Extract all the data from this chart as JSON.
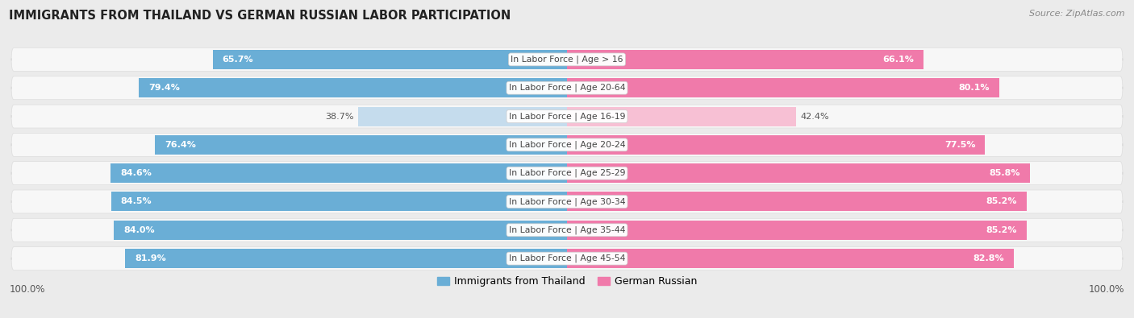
{
  "title": "IMMIGRANTS FROM THAILAND VS GERMAN RUSSIAN LABOR PARTICIPATION",
  "source": "Source: ZipAtlas.com",
  "categories": [
    "In Labor Force | Age > 16",
    "In Labor Force | Age 20-64",
    "In Labor Force | Age 16-19",
    "In Labor Force | Age 20-24",
    "In Labor Force | Age 25-29",
    "In Labor Force | Age 30-34",
    "In Labor Force | Age 35-44",
    "In Labor Force | Age 45-54"
  ],
  "thailand_values": [
    65.7,
    79.4,
    38.7,
    76.4,
    84.6,
    84.5,
    84.0,
    81.9
  ],
  "german_russian_values": [
    66.1,
    80.1,
    42.4,
    77.5,
    85.8,
    85.2,
    85.2,
    82.8
  ],
  "thailand_color_strong": "#6aaed6",
  "thailand_color_weak": "#c5dced",
  "german_russian_color_strong": "#f07aaa",
  "german_russian_color_weak": "#f7c0d4",
  "bg_color": "#ebebeb",
  "row_bg_color": "#f7f7f7",
  "bar_height": 0.68,
  "x_max": 100.0,
  "legend_labels": [
    "Immigrants from Thailand",
    "German Russian"
  ],
  "weak_threshold": 55.0,
  "label_fontsize": 8.0,
  "cat_fontsize": 7.8
}
